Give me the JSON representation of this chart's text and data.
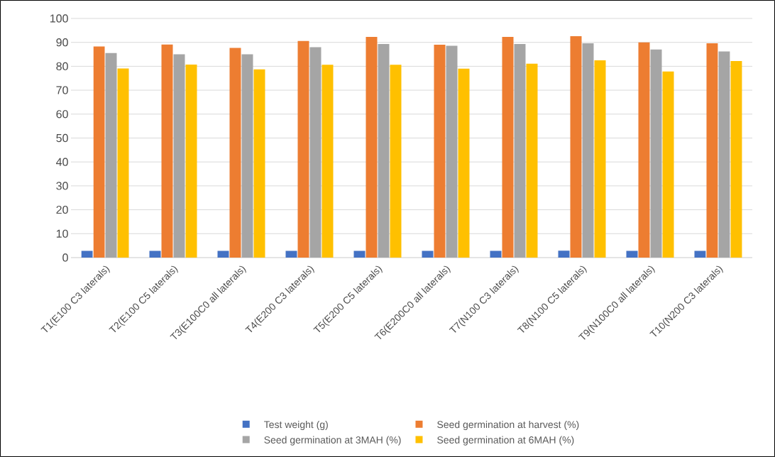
{
  "chart_data": {
    "type": "bar",
    "categories": [
      "T1(E100 C3 laterals)",
      "T2(E100 C5 laterals)",
      "T3(E100C0 all laterals)",
      "T4(E200 C3 laterals)",
      "T5(E200 C5 laterals)",
      "T6(E200C0 all laterals)",
      "T7(N100 C3 laterals)",
      "T8(N100 C5 laterals)",
      "T9(N100C0 all laterals)",
      "T10(N200 C3 laterals)"
    ],
    "series": [
      {
        "name": "Test weight (g)",
        "color": "#4472c4",
        "values": [
          2.8,
          2.8,
          2.8,
          2.8,
          2.8,
          2.8,
          2.8,
          2.9,
          2.8,
          2.8
        ]
      },
      {
        "name": "Seed germination at harvest (%)",
        "color": "#ed7d31",
        "values": [
          88.3,
          89.1,
          87.7,
          90.6,
          92.3,
          89,
          92.3,
          92.6,
          90,
          89.6
        ]
      },
      {
        "name": "Seed germination at 3MAH  (%)",
        "color": "#a5a5a5",
        "values": [
          85.5,
          85,
          85,
          88,
          89.3,
          88.6,
          89.3,
          89.6,
          87,
          86.2
        ]
      },
      {
        "name": "Seed germination at 6MAH (%)",
        "color": "#ffc000",
        "values": [
          79.1,
          80.7,
          78.7,
          80.6,
          80.6,
          79,
          81.1,
          82.5,
          77.8,
          82.2
        ]
      }
    ],
    "ylim": [
      0,
      100
    ],
    "yticks": [
      0,
      10,
      20,
      30,
      40,
      50,
      60,
      70,
      80,
      90,
      100
    ],
    "grid": "y",
    "legend": "bottom"
  }
}
